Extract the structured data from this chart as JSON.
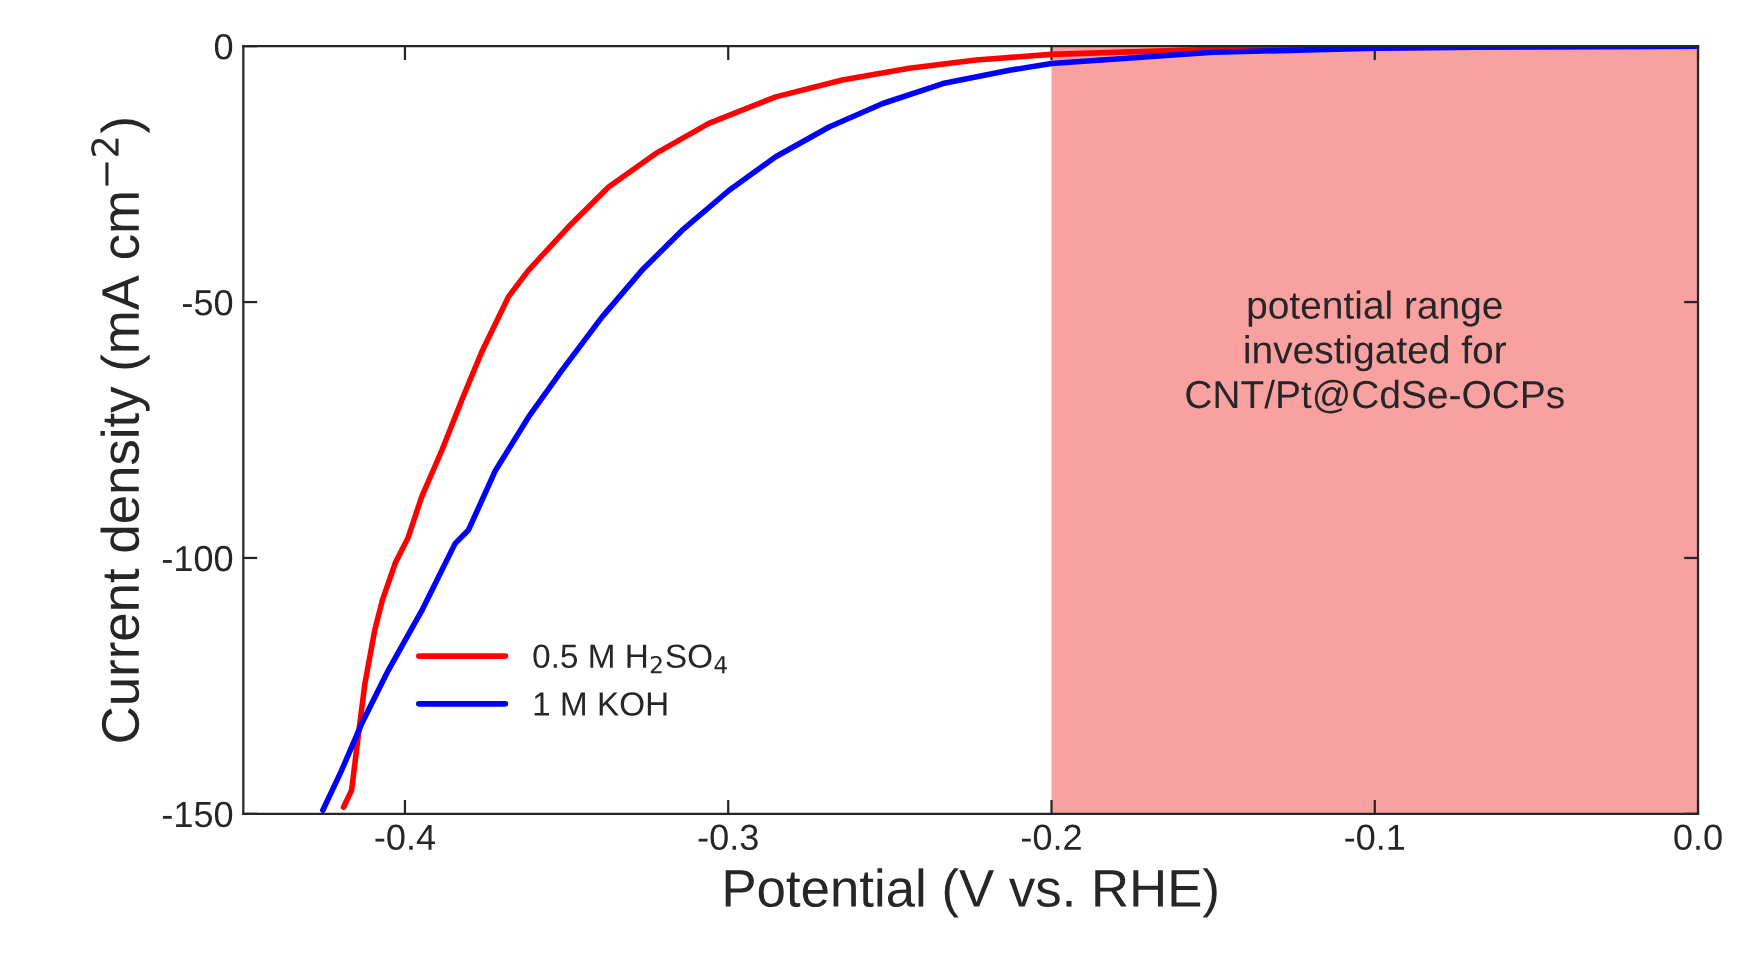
{
  "chart_data": {
    "type": "line",
    "xlabel": "Potential (V vs. RHE)",
    "ylabel": "Current density (mA cm$^{−2}$)",
    "series": [
      {
        "name": "0.5 M H$_{2}$SO$_{4}$",
        "color": "#ff0000",
        "x": [
          -0.419,
          -0.4165,
          -0.4145,
          -0.4124,
          -0.4093,
          -0.407,
          -0.403,
          -0.399,
          -0.3948,
          -0.3886,
          -0.382,
          -0.376,
          -0.368,
          -0.3618,
          -0.3494,
          -0.337,
          -0.3225,
          -0.306,
          -0.2853,
          -0.2647,
          -0.244,
          -0.2233,
          -0.2,
          -0.15,
          -0.1,
          0.0
        ],
        "values": [
          -148.7,
          -145.4,
          -135,
          -124.6,
          -114,
          -108.3,
          -101,
          -96,
          -88,
          -79,
          -68.5,
          -59.4,
          -49,
          -43.8,
          -35.3,
          -27.5,
          -21,
          -15.1,
          -9.9,
          -6.6,
          -4.3,
          -2.7,
          -1.6,
          -0.6,
          -0.3,
          0
        ]
      },
      {
        "name": "1 M KOH",
        "color": "#0000ff",
        "x": [
          -0.4254,
          -0.4196,
          -0.4134,
          -0.4052,
          -0.3948,
          -0.3845,
          -0.3804,
          -0.372,
          -0.3618,
          -0.3514,
          -0.339,
          -0.3267,
          -0.3143,
          -0.2998,
          -0.2853,
          -0.2688,
          -0.2522,
          -0.2336,
          -0.213,
          -0.2,
          -0.15,
          -0.1,
          -0.05,
          0.0
        ],
        "values": [
          -149.3,
          -141.5,
          -132.4,
          -122,
          -110.3,
          -97.2,
          -94.6,
          -82.9,
          -72.5,
          -63.3,
          -52.9,
          -43.8,
          -36,
          -28.2,
          -21.6,
          -15.8,
          -11.2,
          -7.3,
          -4.7,
          -3.4,
          -1.2,
          -0.4,
          -0.1,
          0
        ]
      }
    ],
    "xlim": [
      -0.45,
      0.0
    ],
    "xticks": [
      -0.4,
      -0.3,
      -0.2,
      -0.1,
      {
        "value": 0.0,
        "label": "0.0"
      }
    ],
    "ylim": [
      -150,
      0
    ],
    "yticks": [
      -150,
      -100,
      -50,
      0
    ],
    "bands": [
      {
        "axis": "x",
        "from": -0.2,
        "to": 0.0,
        "label": "potential range\ninvestigated for\nCNT/Pt@CdSe-OCPs",
        "color": "#f9a0a0"
      }
    ],
    "legend": "bottom left",
    "grid": false,
    "marker": "none",
    "line_style": "solid"
  }
}
